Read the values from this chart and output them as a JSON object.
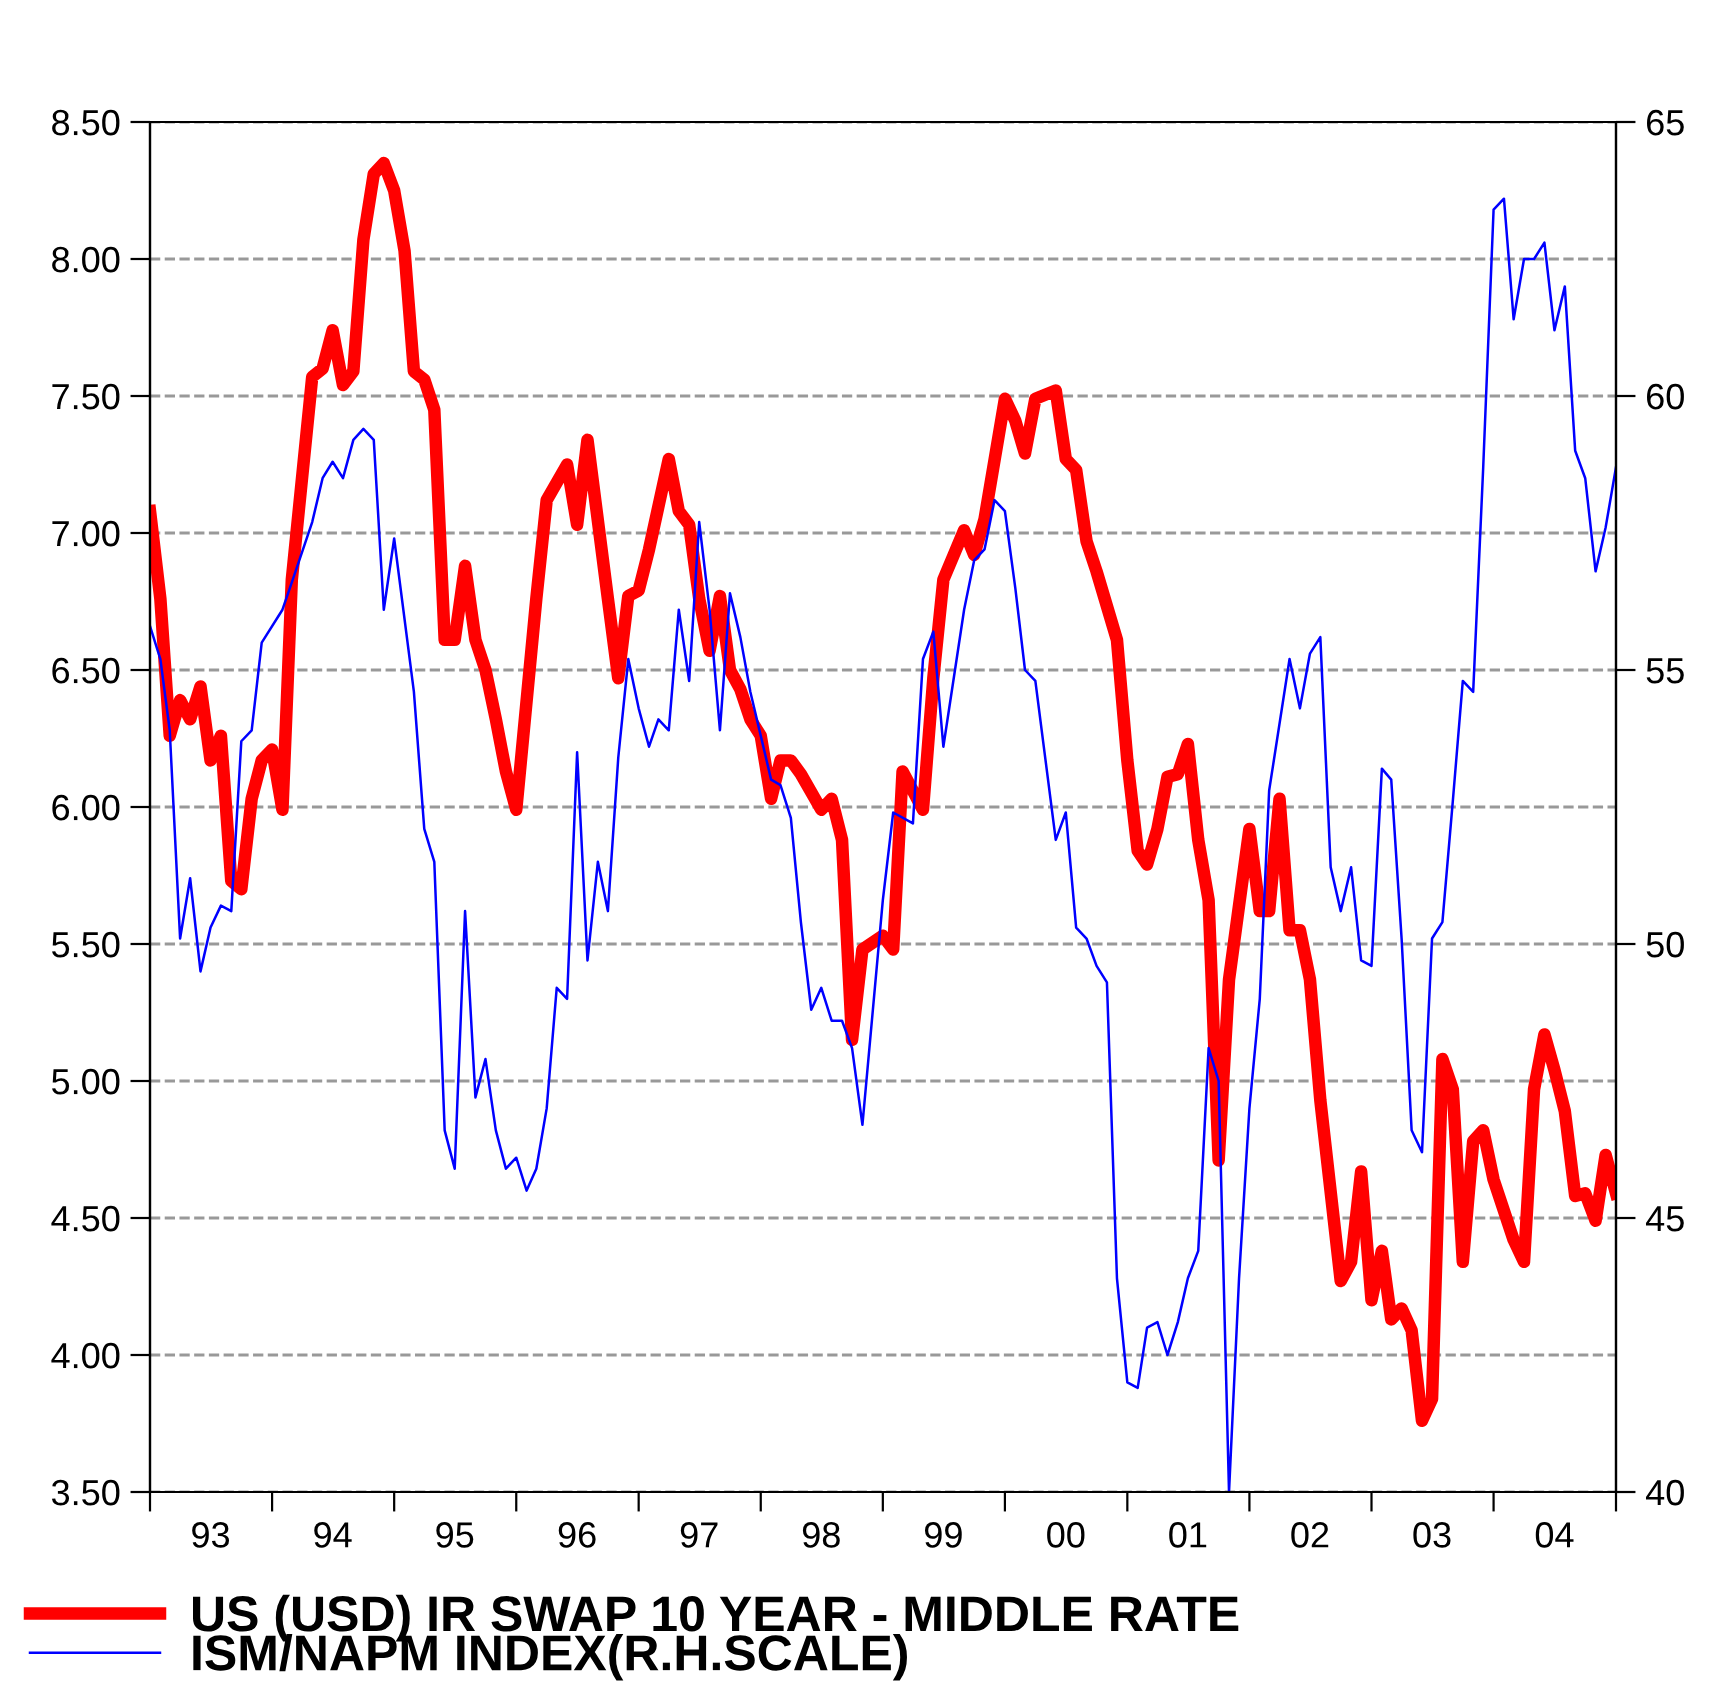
{
  "chart_data": {
    "type": "line",
    "xlim": [
      "1993",
      "2005"
    ],
    "xticks": [
      {
        "value": "1993",
        "label": null
      },
      {
        "value": "1993-07",
        "label": "93"
      },
      {
        "value": "1994",
        "label": null
      },
      {
        "value": "1994-07",
        "label": "94"
      },
      {
        "value": "1995",
        "label": null
      },
      {
        "value": "1995-07",
        "label": "95"
      },
      {
        "value": "1996",
        "label": null
      },
      {
        "value": "1996-07",
        "label": "96"
      },
      {
        "value": "1997",
        "label": null
      },
      {
        "value": "1997-07",
        "label": "97"
      },
      {
        "value": "1998",
        "label": null
      },
      {
        "value": "1998-07",
        "label": "98"
      },
      {
        "value": "1999",
        "label": null
      },
      {
        "value": "1999-07",
        "label": "99"
      },
      {
        "value": "2000",
        "label": null
      },
      {
        "value": "2000-07",
        "label": "00"
      },
      {
        "value": "2001",
        "label": null
      },
      {
        "value": "2001-07",
        "label": "01"
      },
      {
        "value": "2002",
        "label": null
      },
      {
        "value": "2002-07",
        "label": "02"
      },
      {
        "value": "2003",
        "label": null
      },
      {
        "value": "2003-07",
        "label": "03"
      },
      {
        "value": "2004",
        "label": null
      },
      {
        "value": "2004-07",
        "label": "04"
      },
      {
        "value": "2005",
        "label": null
      }
    ],
    "ylim": [
      3.5,
      8.5
    ],
    "yticks": [
      {
        "value": 3.5,
        "label": "3.50"
      },
      {
        "value": 4.0,
        "label": "4.00"
      },
      {
        "value": 4.5,
        "label": "4.50"
      },
      {
        "value": 5.0,
        "label": "5.00"
      },
      {
        "value": 5.5,
        "label": "5.50"
      },
      {
        "value": 6.0,
        "label": "6.00"
      },
      {
        "value": 6.5,
        "label": "6.50"
      },
      {
        "value": 7.0,
        "label": "7.00"
      },
      {
        "value": 7.5,
        "label": "7.50"
      },
      {
        "value": 8.0,
        "label": "8.00"
      },
      {
        "value": 8.5,
        "label": "8.50"
      }
    ],
    "y2lim": [
      40,
      65
    ],
    "y2ticks": [
      40,
      45,
      50,
      55,
      60,
      65
    ],
    "grid": "y",
    "legend": "bottom",
    "line_style": "solid",
    "series": [
      {
        "name": "US (USD) IR SWAP 10 YEAR - MIDDLE RATE",
        "color": "#ff0000",
        "x": [
          "1993-01",
          "1993-02",
          "1993-03",
          "1993-04",
          "1993-05",
          "1993-06",
          "1993-07",
          "1993-08",
          "1993-09",
          "1993-10",
          "1993-11",
          "1993-12",
          "1994-01",
          "1994-02",
          "1994-03",
          "1994-05",
          "1994-06",
          "1994-07",
          "1994-08",
          "1994-09",
          "1994-10",
          "1994-11",
          "1994-12",
          "1995-01",
          "1995-02",
          "1995-03",
          "1995-04",
          "1995-05",
          "1995-06",
          "1995-07",
          "1995-08",
          "1995-09",
          "1995-10",
          "1995-11",
          "1995-12",
          "1996-01",
          "1996-03",
          "1996-04",
          "1996-06",
          "1996-07",
          "1996-08",
          "1996-10",
          "1996-11",
          "1996-12",
          "1997-01",
          "1997-02",
          "1997-04",
          "1997-05",
          "1997-06",
          "1997-07",
          "1997-08",
          "1997-09",
          "1997-10",
          "1997-11",
          "1997-12",
          "1998-01",
          "1998-02",
          "1998-03",
          "1998-04",
          "1998-05",
          "1998-07",
          "1998-08",
          "1998-09",
          "1998-10",
          "1998-11",
          "1999-01",
          "1999-02",
          "1999-03",
          "1999-05",
          "1999-06",
          "1999-07",
          "1999-09",
          "1999-10",
          "1999-11",
          "2000-01",
          "2000-02",
          "2000-03",
          "2000-04",
          "2000-06",
          "2000-07",
          "2000-08",
          "2000-09",
          "2000-10",
          "2000-12",
          "2001-01",
          "2001-02",
          "2001-03",
          "2001-04",
          "2001-05",
          "2001-06",
          "2001-07",
          "2001-08",
          "2001-09",
          "2001-10",
          "2001-11",
          "2002-01",
          "2002-02",
          "2002-03",
          "2002-04",
          "2002-05",
          "2002-06",
          "2002-07",
          "2002-08",
          "2002-10",
          "2002-11",
          "2002-12",
          "2003-01",
          "2003-02",
          "2003-03",
          "2003-04",
          "2003-05",
          "2003-06",
          "2003-07",
          "2003-08",
          "2003-09",
          "2003-10",
          "2003-11",
          "2003-12",
          "2004-01",
          "2004-03",
          "2004-04",
          "2004-05",
          "2004-06",
          "2004-07",
          "2004-08",
          "2004-09",
          "2004-10",
          "2004-11",
          "2004-12",
          "2005-01"
        ],
        "values": [
          7.08,
          6.76,
          6.26,
          6.39,
          6.32,
          6.44,
          6.17,
          6.26,
          5.73,
          5.7,
          6.03,
          6.17,
          6.21,
          5.99,
          6.83,
          7.57,
          7.6,
          7.74,
          7.54,
          7.59,
          8.07,
          8.31,
          8.35,
          8.25,
          8.03,
          7.59,
          7.56,
          7.45,
          6.61,
          6.61,
          6.88,
          6.61,
          6.5,
          6.32,
          6.13,
          5.99,
          6.76,
          7.12,
          7.25,
          7.03,
          7.34,
          6.76,
          6.47,
          6.77,
          6.79,
          6.94,
          7.27,
          7.08,
          7.03,
          6.76,
          6.57,
          6.77,
          6.5,
          6.43,
          6.32,
          6.26,
          6.03,
          6.17,
          6.17,
          6.12,
          5.99,
          6.03,
          5.88,
          5.15,
          5.48,
          5.53,
          5.48,
          6.13,
          5.99,
          6.47,
          6.83,
          7.01,
          6.92,
          7.05,
          7.49,
          7.41,
          7.29,
          7.49,
          7.52,
          7.27,
          7.23,
          6.97,
          6.86,
          6.61,
          6.17,
          5.84,
          5.79,
          5.92,
          6.11,
          6.12,
          6.23,
          5.88,
          5.66,
          4.71,
          5.37,
          5.92,
          5.62,
          5.62,
          6.03,
          5.55,
          5.55,
          5.37,
          4.93,
          4.27,
          4.34,
          4.67,
          4.2,
          4.38,
          4.13,
          4.17,
          4.09,
          3.76,
          3.84,
          5.08,
          4.97,
          4.34,
          4.78,
          4.82,
          4.64,
          4.42,
          4.34,
          4.97,
          5.17,
          5.04,
          4.89,
          4.58,
          4.59,
          4.49,
          4.73,
          4.59
        ]
      },
      {
        "name": "ISM/NAPM INDEX(R.H.SCALE)",
        "color": "#0000ff",
        "axis": "y2",
        "x": [
          "1993-01",
          "1993-02",
          "1993-03",
          "1993-04",
          "1993-05",
          "1993-06",
          "1993-07",
          "1993-08",
          "1993-09",
          "1993-10",
          "1993-11",
          "1993-12",
          "1994-02",
          "1994-03",
          "1994-05",
          "1994-06",
          "1994-07",
          "1994-08",
          "1994-09",
          "1994-10",
          "1994-11",
          "1994-12",
          "1995-01",
          "1995-03",
          "1995-04",
          "1995-05",
          "1995-06",
          "1995-07",
          "1995-08",
          "1995-09",
          "1995-10",
          "1995-11",
          "1995-12",
          "1996-01",
          "1996-02",
          "1996-03",
          "1996-04",
          "1996-05",
          "1996-06",
          "1996-07",
          "1996-08",
          "1996-09",
          "1996-10",
          "1996-11",
          "1996-12",
          "1997-01",
          "1997-02",
          "1997-03",
          "1997-04",
          "1997-05",
          "1997-06",
          "1997-07",
          "1997-08",
          "1997-09",
          "1997-10",
          "1997-11",
          "1997-12",
          "1998-02",
          "1998-03",
          "1998-04",
          "1998-05",
          "1998-06",
          "1998-07",
          "1998-08",
          "1998-09",
          "1998-10",
          "1998-11",
          "1999-01",
          "1999-02",
          "1999-04",
          "1999-05",
          "1999-06",
          "1999-07",
          "1999-09",
          "1999-10",
          "1999-11",
          "1999-12",
          "2000-01",
          "2000-02",
          "2000-03",
          "2000-04",
          "2000-06",
          "2000-07",
          "2000-08",
          "2000-09",
          "2000-10",
          "2000-11",
          "2000-12",
          "2001-01",
          "2001-02",
          "2001-03",
          "2001-04",
          "2001-05",
          "2001-06",
          "2001-07",
          "2001-08",
          "2001-09",
          "2001-10",
          "2001-11",
          "2001-12",
          "2002-01",
          "2002-02",
          "2002-03",
          "2002-05",
          "2002-06",
          "2002-07",
          "2002-08",
          "2002-09",
          "2002-10",
          "2002-11",
          "2002-12",
          "2003-01",
          "2003-02",
          "2003-03",
          "2003-04",
          "2003-05",
          "2003-06",
          "2003-07",
          "2003-08",
          "2003-09",
          "2003-10",
          "2003-11",
          "2003-12",
          "2004-01",
          "2004-02",
          "2004-03",
          "2004-04",
          "2004-05",
          "2004-06",
          "2004-07",
          "2004-08",
          "2004-09",
          "2004-10",
          "2004-11",
          "2004-12",
          "2005-01"
        ],
        "values": [
          55.8,
          55.2,
          53.9,
          50.1,
          51.2,
          49.5,
          50.3,
          50.7,
          50.6,
          53.7,
          53.9,
          55.5,
          56.1,
          56.6,
          57.7,
          58.5,
          58.8,
          58.5,
          59.2,
          59.4,
          59.2,
          56.1,
          57.4,
          54.6,
          52.1,
          51.5,
          46.6,
          45.9,
          50.6,
          47.2,
          47.9,
          46.6,
          45.9,
          46.1,
          45.5,
          45.9,
          47.0,
          49.2,
          49.0,
          53.5,
          49.7,
          51.5,
          50.6,
          53.4,
          55.2,
          54.3,
          53.6,
          54.1,
          53.9,
          56.1,
          54.8,
          57.7,
          56.1,
          53.9,
          56.4,
          55.6,
          54.6,
          53.0,
          52.9,
          52.3,
          50.4,
          48.8,
          49.2,
          48.6,
          48.6,
          48.1,
          46.7,
          50.8,
          52.4,
          52.2,
          55.2,
          55.7,
          53.6,
          56.1,
          57.0,
          57.2,
          58.1,
          57.9,
          56.5,
          55.0,
          54.8,
          51.9,
          52.4,
          50.3,
          50.1,
          49.6,
          49.3,
          43.9,
          42.0,
          41.9,
          43.0,
          43.1,
          42.5,
          43.1,
          43.9,
          44.4,
          48.1,
          47.5,
          40.0,
          43.9,
          47.0,
          49.0,
          52.8,
          55.2,
          54.3,
          55.3,
          55.6,
          51.4,
          50.6,
          51.4,
          49.7,
          49.6,
          53.2,
          53.0,
          50.1,
          46.6,
          46.2,
          50.1,
          50.4,
          52.6,
          54.8,
          54.6,
          58.7,
          63.4,
          63.6,
          61.4,
          62.5,
          62.5,
          62.8,
          61.2,
          62.0,
          59.0,
          58.5,
          56.8,
          57.6,
          58.7
        ]
      }
    ]
  }
}
